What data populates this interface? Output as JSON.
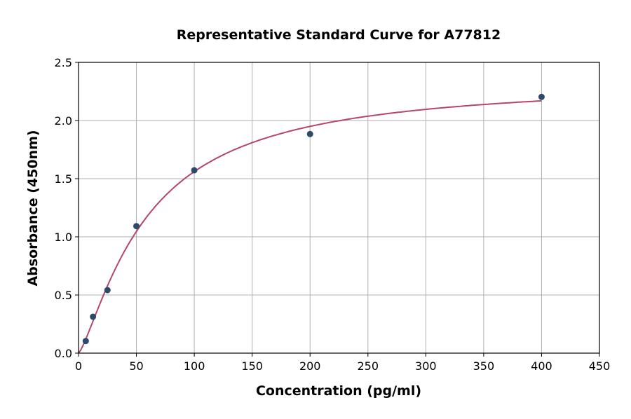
{
  "chart_data": {
    "type": "scatter",
    "title": "Representative Standard Curve for A77812",
    "xlabel": "Concentration (pg/ml)",
    "ylabel": "Absorbance (450nm)",
    "xlim": [
      0,
      450
    ],
    "ylim": [
      0,
      2.5
    ],
    "xticks": [
      "0",
      "50",
      "100",
      "150",
      "200",
      "250",
      "300",
      "350",
      "400",
      "450"
    ],
    "yticks": [
      "0.0",
      "0.5",
      "1.0",
      "1.5",
      "2.0",
      "2.5"
    ],
    "grid": true,
    "points": [
      {
        "x": 6.25,
        "y": 0.104
      },
      {
        "x": 12.5,
        "y": 0.313
      },
      {
        "x": 25,
        "y": 0.542
      },
      {
        "x": 50,
        "y": 1.092
      },
      {
        "x": 100,
        "y": 1.572
      },
      {
        "x": 200,
        "y": 1.884
      },
      {
        "x": 400,
        "y": 2.203
      }
    ],
    "fit_curve": "4-parameter logistic",
    "colors": {
      "points": "#2e4a6b",
      "curve": "#b5466b",
      "grid": "#b0b0b0"
    }
  }
}
